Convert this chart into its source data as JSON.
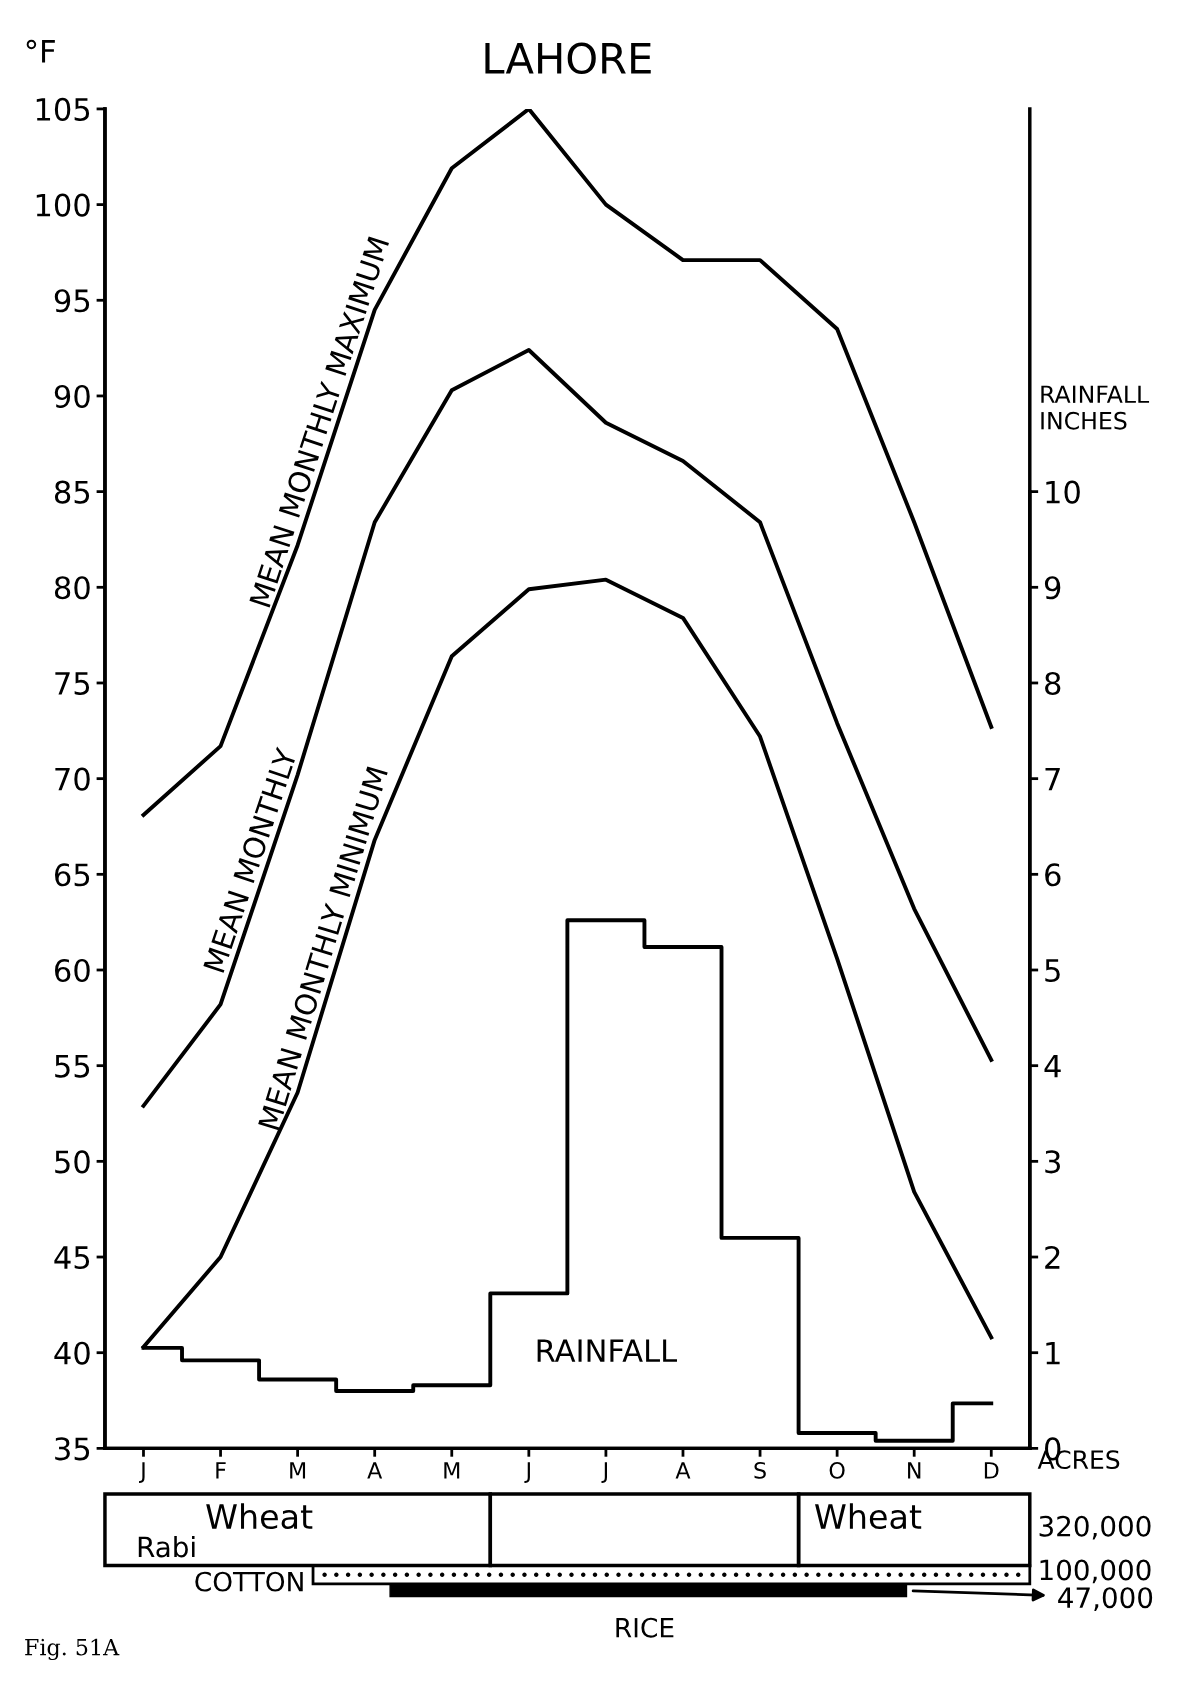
{
  "chart_data": [
    {
      "type": "line",
      "title": "LAHORE",
      "ylabel": "°F",
      "y2label": "RAINFALL\nINCHES",
      "categories": [
        "J",
        "F",
        "M",
        "A",
        "M",
        "J",
        "J",
        "A",
        "S",
        "O",
        "N",
        "D"
      ],
      "series": [
        {
          "name": "MEAN MONTHLY MAXIMUM",
          "color": "#000000",
          "values": [
            68.1,
            71.7,
            82.2,
            94.5,
            101.9,
            105,
            100,
            97.1,
            97.1,
            93.5,
            83.4,
            72.7
          ]
        },
        {
          "name": "MEAN MONTHLY",
          "color": "#000000",
          "values": [
            52.9,
            58.2,
            70.2,
            83.4,
            90.3,
            92.4,
            88.6,
            86.6,
            83.4,
            72.9,
            63.2,
            55.3
          ]
        },
        {
          "name": "MEAN MONTHLY MINIMUM",
          "color": "#000000",
          "values": [
            40.3,
            45,
            53.6,
            66.8,
            76.4,
            79.9,
            80.4,
            78.4,
            72.2,
            60.6,
            48.4,
            40.8
          ]
        },
        {
          "name": "RAINFALL",
          "type": "step",
          "axis": "y2",
          "color": "#000000",
          "values": [
            1.05,
            0.92,
            0.72,
            0.6,
            0.66,
            1.62,
            5.52,
            5.24,
            2.2,
            0.16,
            0.08,
            0.47
          ]
        }
      ],
      "ylim": [
        35,
        105
      ],
      "yticks": [
        35,
        40,
        45,
        50,
        55,
        60,
        65,
        70,
        75,
        80,
        85,
        90,
        95,
        100,
        105
      ],
      "y2lim": [
        0,
        14
      ],
      "y2ticks": [
        0,
        1,
        2,
        3,
        4,
        5,
        6,
        7,
        8,
        9,
        10
      ],
      "grid": false,
      "legend": false,
      "marker": "none",
      "line_style": "solid",
      "annotations": [
        "Fig. 51A"
      ]
    },
    {
      "type": "other",
      "annotations": [
        "Wheat",
        "Rabi",
        "Wheat",
        "ACRES",
        "320,000",
        "100,000",
        "COTTON",
        "47,000",
        "RICE"
      ]
    }
  ]
}
